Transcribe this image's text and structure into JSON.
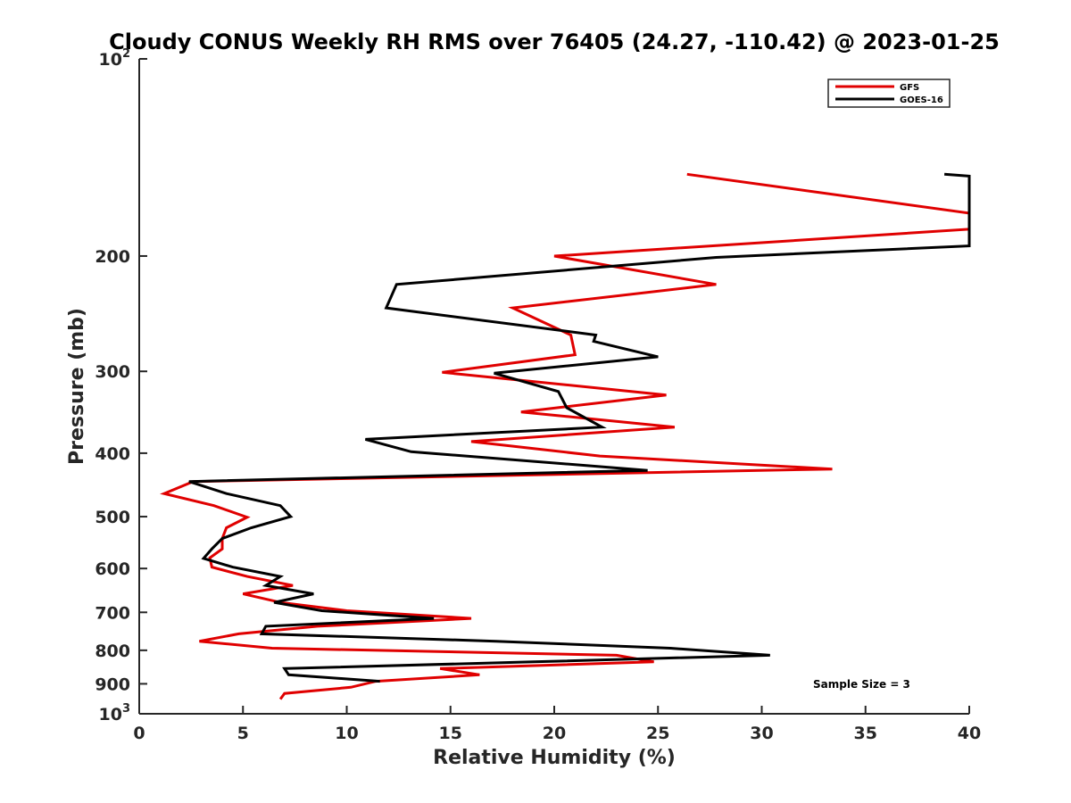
{
  "chart_data": {
    "type": "line",
    "title": "Cloudy CONUS Weekly RH RMS over 76405 (24.27, -110.42) @ 2023-01-25",
    "xlabel": "Relative Humidity (%)",
    "ylabel": "Pressure (mb)",
    "xlim": [
      0,
      40
    ],
    "ylim": [
      100,
      1000
    ],
    "y_scale": "log",
    "y_reversed": true,
    "x_ticks": [
      "0",
      "5",
      "10",
      "15",
      "20",
      "25",
      "30",
      "35",
      "40"
    ],
    "y_ticks": [
      {
        "value": 100,
        "base": "10",
        "exp": "2"
      },
      {
        "value": 200,
        "label": "200"
      },
      {
        "value": 300,
        "label": "300"
      },
      {
        "value": 400,
        "label": "400"
      },
      {
        "value": 500,
        "label": "500"
      },
      {
        "value": 600,
        "label": "600"
      },
      {
        "value": 700,
        "label": "700"
      },
      {
        "value": 800,
        "label": "800"
      },
      {
        "value": 900,
        "label": "900"
      },
      {
        "value": 1000,
        "base": "10",
        "exp": "3"
      }
    ],
    "grid": false,
    "legend_position": "top-right",
    "annotation": "Sample Size = 3",
    "series": [
      {
        "name": "GFS",
        "color": "#e00000",
        "points": [
          [
            26.4,
            150
          ],
          [
            40,
            172
          ],
          [
            40,
            182
          ],
          [
            20,
            200
          ],
          [
            27.8,
            221
          ],
          [
            18,
            240
          ],
          [
            20.8,
            264
          ],
          [
            21,
            283
          ],
          [
            14.6,
            301
          ],
          [
            25.4,
            326
          ],
          [
            18.4,
            346
          ],
          [
            25.8,
            365
          ],
          [
            16,
            384
          ],
          [
            22.2,
            404
          ],
          [
            33.4,
            423
          ],
          [
            2.6,
            442
          ],
          [
            1.2,
            461
          ],
          [
            3.6,
            481
          ],
          [
            5.2,
            501
          ],
          [
            4.2,
            520
          ],
          [
            4,
            540
          ],
          [
            4,
            560
          ],
          [
            3.4,
            578
          ],
          [
            3.5,
            597
          ],
          [
            5.2,
            617
          ],
          [
            7.4,
            637
          ],
          [
            5,
            656
          ],
          [
            6.8,
            676
          ],
          [
            10,
            696
          ],
          [
            16,
            715
          ],
          [
            8.6,
            735
          ],
          [
            4.8,
            755
          ],
          [
            2.9,
            775
          ],
          [
            6.4,
            794
          ],
          [
            23,
            814
          ],
          [
            24.8,
            833
          ],
          [
            14.5,
            853
          ],
          [
            16.4,
            872
          ],
          [
            11.4,
            892
          ],
          [
            10.2,
            911
          ],
          [
            7,
            931
          ],
          [
            6.8,
            950
          ]
        ]
      },
      {
        "name": "GOES-16",
        "color": "#000000",
        "points": [
          [
            38.8,
            150
          ],
          [
            40,
            151
          ],
          [
            40,
            193
          ],
          [
            27.8,
            201
          ],
          [
            12.4,
            221
          ],
          [
            11.9,
            240
          ],
          [
            22,
            264
          ],
          [
            21.9,
            270
          ],
          [
            25,
            285
          ],
          [
            17.1,
            302
          ],
          [
            20.2,
            322
          ],
          [
            20.6,
            341
          ],
          [
            22.3,
            365
          ],
          [
            10.9,
            381
          ],
          [
            13.1,
            398
          ],
          [
            24.5,
            425
          ],
          [
            2.4,
            442
          ],
          [
            4.2,
            461
          ],
          [
            6.8,
            481
          ],
          [
            7.3,
            500
          ],
          [
            5.4,
            520
          ],
          [
            4,
            540
          ],
          [
            3.5,
            560
          ],
          [
            3.1,
            579
          ],
          [
            4.5,
            597
          ],
          [
            6.8,
            617
          ],
          [
            6.1,
            637
          ],
          [
            8.4,
            656
          ],
          [
            6.5,
            676
          ],
          [
            8.8,
            696
          ],
          [
            14.2,
            715
          ],
          [
            6.1,
            735
          ],
          [
            5.9,
            755
          ],
          [
            17.2,
            775
          ],
          [
            25.6,
            794
          ],
          [
            30.4,
            814
          ],
          [
            19,
            833
          ],
          [
            7,
            853
          ],
          [
            7.2,
            872
          ],
          [
            11.6,
            892
          ]
        ]
      }
    ]
  }
}
